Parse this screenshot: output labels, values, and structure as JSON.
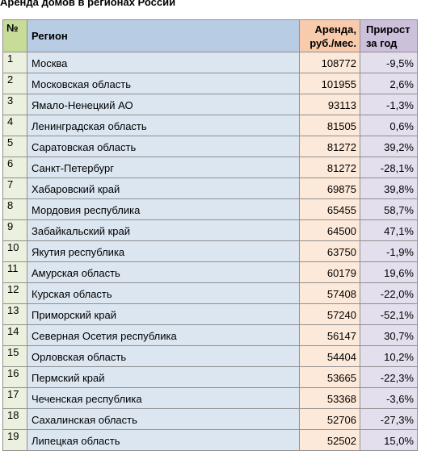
{
  "title": "Аренда домов в регионах России",
  "table": {
    "headers": {
      "num": "№",
      "region": "Регион",
      "rent_line1": "Аренда,",
      "rent_line2": "руб./мес.",
      "growth_line1": "Прирост",
      "growth_line2": "за год"
    },
    "rows": [
      {
        "num": "1",
        "region": "Москва",
        "rent": "108772",
        "growth": "-9,5%"
      },
      {
        "num": "2",
        "region": "Московская область",
        "rent": "101955",
        "growth": "2,6%"
      },
      {
        "num": "3",
        "region": "Ямало-Ненецкий АО",
        "rent": "93113",
        "growth": "-1,3%"
      },
      {
        "num": "4",
        "region": "Ленинградская область",
        "rent": "81505",
        "growth": "0,6%"
      },
      {
        "num": "5",
        "region": "Саратовская область",
        "rent": "81272",
        "growth": "39,2%"
      },
      {
        "num": "6",
        "region": "Санкт-Петербург",
        "rent": "81272",
        "growth": "-28,1%"
      },
      {
        "num": "7",
        "region": "Хабаровский край",
        "rent": "69875",
        "growth": "39,8%"
      },
      {
        "num": "8",
        "region": "Мордовия республика",
        "rent": "65455",
        "growth": "58,7%"
      },
      {
        "num": "9",
        "region": "Забайкальский край",
        "rent": "64500",
        "growth": "47,1%"
      },
      {
        "num": "10",
        "region": "Якутия республика",
        "rent": "63750",
        "growth": "-1,9%"
      },
      {
        "num": "11",
        "region": "Амурская область",
        "rent": "60179",
        "growth": "19,6%"
      },
      {
        "num": "12",
        "region": "Курская область",
        "rent": "57408",
        "growth": "-22,0%"
      },
      {
        "num": "13",
        "region": "Приморский край",
        "rent": "57240",
        "growth": "-52,1%"
      },
      {
        "num": "14",
        "region": "Северная Осетия республика",
        "rent": "56147",
        "growth": "30,7%"
      },
      {
        "num": "15",
        "region": "Орловская область",
        "rent": "54404",
        "growth": "10,2%"
      },
      {
        "num": "16",
        "region": "Пермский край",
        "rent": "53665",
        "growth": "-22,3%"
      },
      {
        "num": "17",
        "region": "Чеченская республика",
        "rent": "53368",
        "growth": "-3,6%"
      },
      {
        "num": "18",
        "region": "Сахалинская область",
        "rent": "52706",
        "growth": "-27,3%"
      },
      {
        "num": "19",
        "region": "Липецкая область",
        "rent": "52502",
        "growth": "15,0%"
      }
    ]
  }
}
